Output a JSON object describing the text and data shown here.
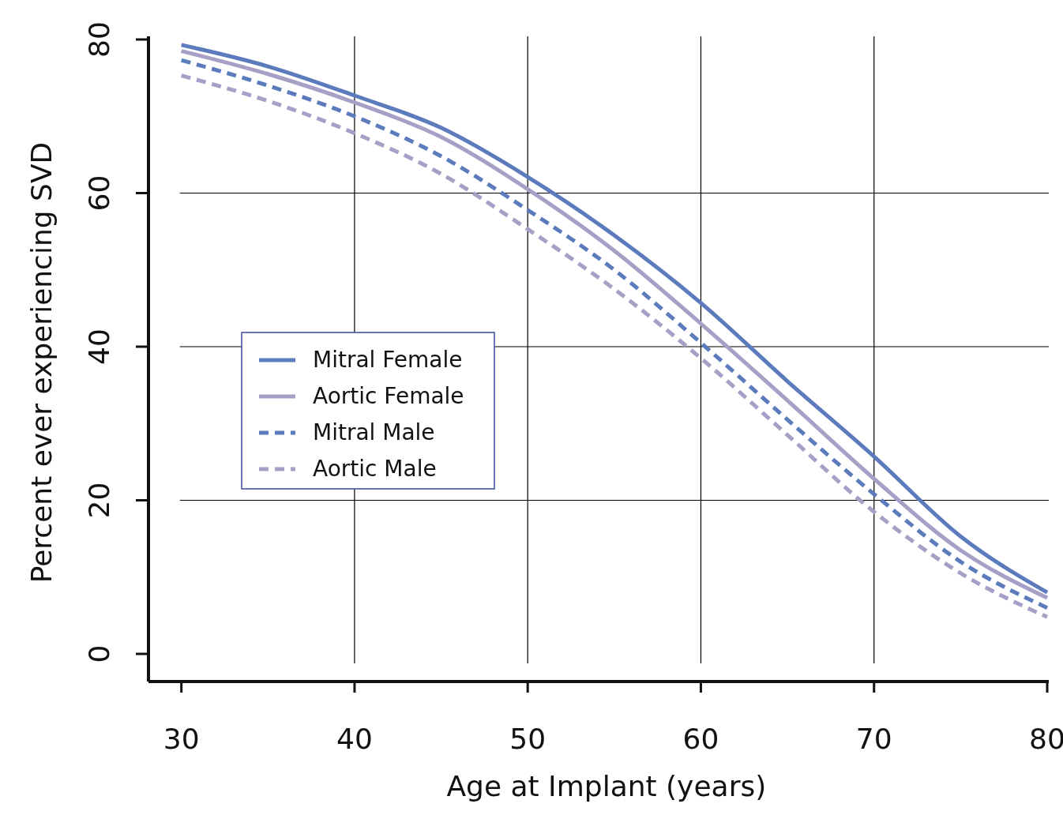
{
  "chart_data": {
    "type": "line",
    "xlabel": "Age at Implant (years)",
    "ylabel": "Percent ever experiencing SVD",
    "x": [
      30,
      35,
      40,
      45,
      50,
      55,
      60,
      65,
      70,
      75,
      80
    ],
    "series": [
      {
        "name": "Mitral Female",
        "color": "#5b7bbd",
        "line_style": "solid",
        "values": [
          79.3,
          76.5,
          72.7,
          68.5,
          62.1,
          54.5,
          45.7,
          35.5,
          25.7,
          15.3,
          8.0
        ]
      },
      {
        "name": "Aortic Female",
        "color": "#a89fc6",
        "line_style": "solid",
        "values": [
          78.5,
          75.5,
          71.8,
          67.3,
          60.5,
          52.5,
          43.0,
          33.0,
          22.8,
          13.5,
          7.3
        ]
      },
      {
        "name": "Mitral Male",
        "color": "#5b7bbd",
        "line_style": "dashed",
        "values": [
          77.3,
          74.0,
          70.0,
          64.8,
          57.8,
          50.0,
          40.5,
          30.5,
          20.8,
          12.0,
          6.0
        ]
      },
      {
        "name": "Aortic Male",
        "color": "#a89fc6",
        "line_style": "dashed",
        "values": [
          75.3,
          72.0,
          67.8,
          62.5,
          55.3,
          47.5,
          38.5,
          28.5,
          18.5,
          10.5,
          4.8
        ]
      }
    ],
    "xlim": [
      28.1,
      80
    ],
    "ylim": [
      -3.6,
      80
    ],
    "xticks": [
      30,
      40,
      50,
      60,
      70,
      80
    ],
    "yticks": [
      0,
      20,
      40,
      60,
      80
    ],
    "grid": true,
    "legend": "left",
    "marker": "none"
  }
}
